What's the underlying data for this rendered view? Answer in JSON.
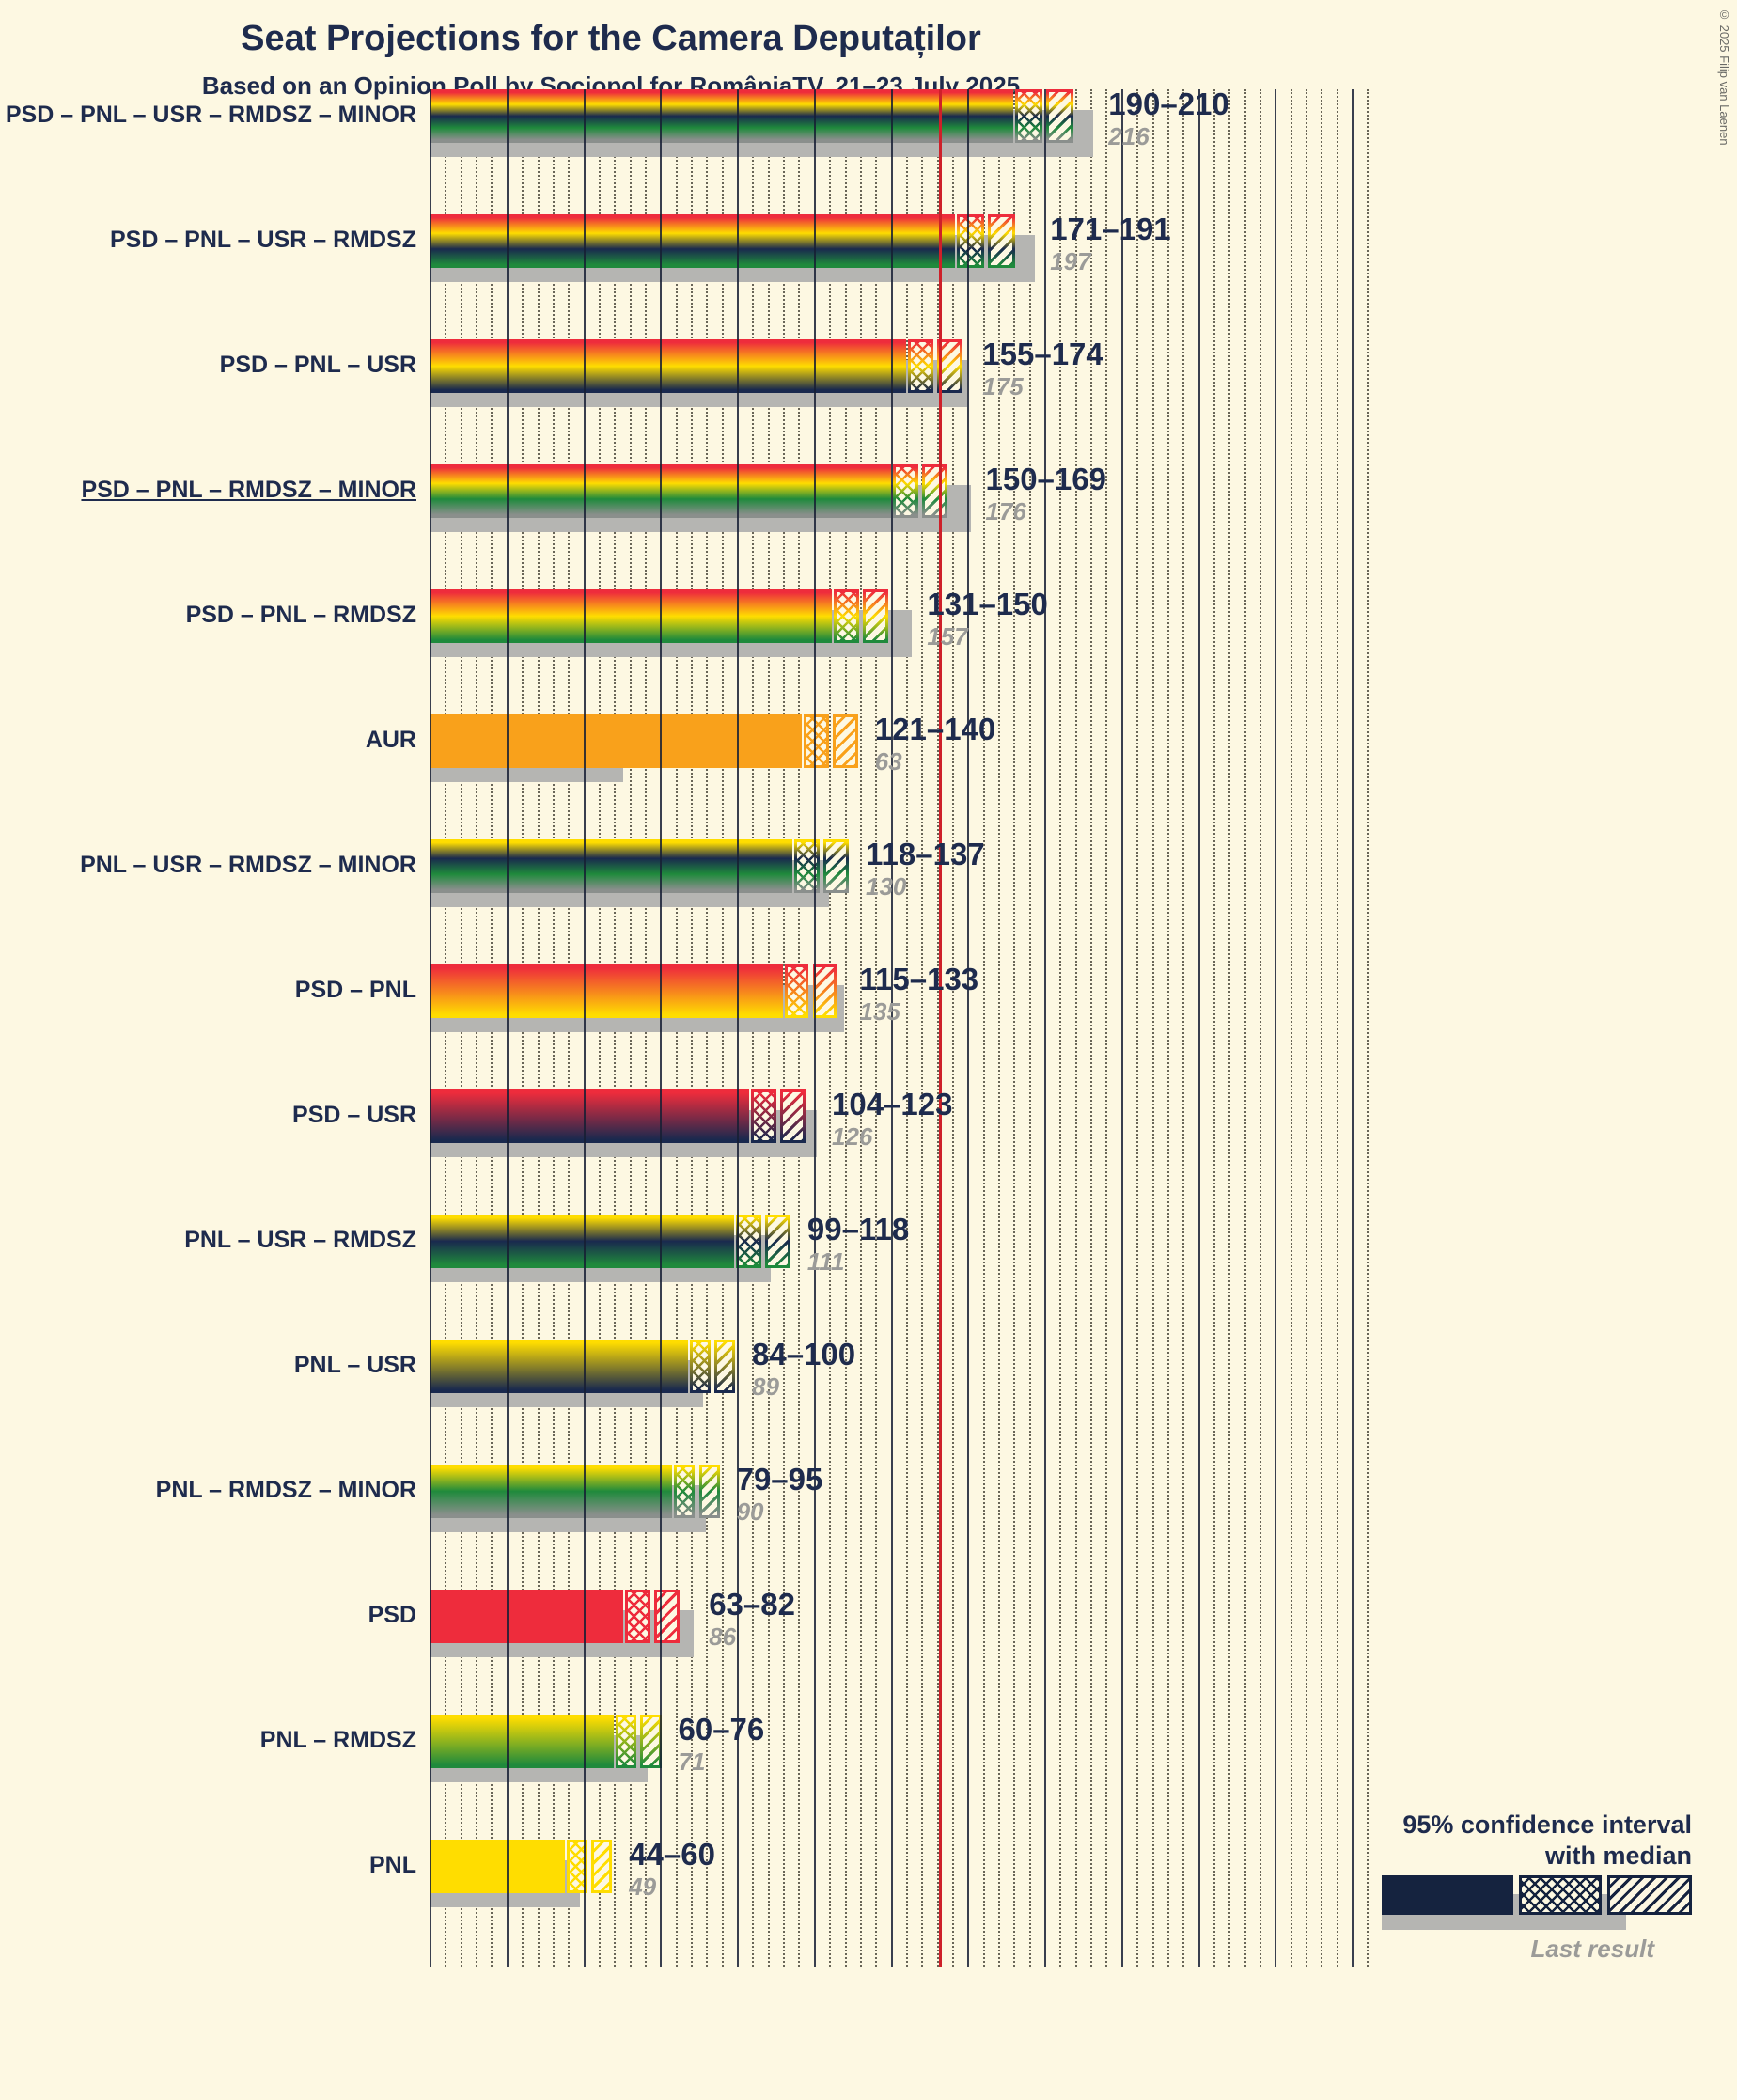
{
  "title": "Seat Projections for the Camera Deputaților",
  "subtitle": "Based on an Opinion Poll by Sociopol for RomâniaTV, 21–23 July 2025",
  "copyright": "© 2025 Filip van Laenen",
  "legend": {
    "ci_line1": "95% confidence interval",
    "ci_line2": "with median",
    "last_result": "Last result"
  },
  "colors": {
    "PSD": "#EE2C3C",
    "PNL": "#FFDD00",
    "USR": "#19294E",
    "RMDSZ": "#1F8A3C",
    "MINOR": "#8A8F8C",
    "AUR": "#F9A11B",
    "last_result_bar": "#B5B5B2",
    "majority_line": "#CE2029",
    "legend_sample": "#15233F",
    "text": "#1E2B4D",
    "muted_text": "#9B9B98",
    "background": "#FDF8E2"
  },
  "chart_data": {
    "type": "bar",
    "orientation": "horizontal",
    "title": "Seat Projections for the Camera Deputaților",
    "x_axis": {
      "min": 0,
      "max": 305,
      "solid_gridline_step": 25,
      "dotted_gridline_step": 5,
      "majority_line_seats": 166
    },
    "rows": [
      {
        "label": "PSD – PNL – USR – RMDSZ – MINOR",
        "parties": [
          "PSD",
          "PNL",
          "USR",
          "RMDSZ",
          "MINOR"
        ],
        "ci_low": 190,
        "ci_high": 210,
        "range_label": "190–210",
        "last_result": 216,
        "last_result_label": "216",
        "underline": false
      },
      {
        "label": "PSD – PNL – USR – RMDSZ",
        "parties": [
          "PSD",
          "PNL",
          "USR",
          "RMDSZ"
        ],
        "ci_low": 171,
        "ci_high": 191,
        "range_label": "171–191",
        "last_result": 197,
        "last_result_label": "197",
        "underline": false
      },
      {
        "label": "PSD – PNL – USR",
        "parties": [
          "PSD",
          "PNL",
          "USR"
        ],
        "ci_low": 155,
        "ci_high": 174,
        "range_label": "155–174",
        "last_result": 175,
        "last_result_label": "175",
        "underline": false
      },
      {
        "label": "PSD – PNL – RMDSZ – MINOR",
        "parties": [
          "PSD",
          "PNL",
          "RMDSZ",
          "MINOR"
        ],
        "ci_low": 150,
        "ci_high": 169,
        "range_label": "150–169",
        "last_result": 176,
        "last_result_label": "176",
        "underline": true
      },
      {
        "label": "PSD – PNL – RMDSZ",
        "parties": [
          "PSD",
          "PNL",
          "RMDSZ"
        ],
        "ci_low": 131,
        "ci_high": 150,
        "range_label": "131–150",
        "last_result": 157,
        "last_result_label": "157",
        "underline": false
      },
      {
        "label": "AUR",
        "parties": [
          "AUR"
        ],
        "ci_low": 121,
        "ci_high": 140,
        "range_label": "121–140",
        "last_result": 63,
        "last_result_label": "63",
        "underline": false
      },
      {
        "label": "PNL – USR – RMDSZ – MINOR",
        "parties": [
          "PNL",
          "USR",
          "RMDSZ",
          "MINOR"
        ],
        "ci_low": 118,
        "ci_high": 137,
        "range_label": "118–137",
        "last_result": 130,
        "last_result_label": "130",
        "underline": false
      },
      {
        "label": "PSD – PNL",
        "parties": [
          "PSD",
          "PNL"
        ],
        "ci_low": 115,
        "ci_high": 133,
        "range_label": "115–133",
        "last_result": 135,
        "last_result_label": "135",
        "underline": false
      },
      {
        "label": "PSD – USR",
        "parties": [
          "PSD",
          "USR"
        ],
        "ci_low": 104,
        "ci_high": 123,
        "range_label": "104–123",
        "last_result": 126,
        "last_result_label": "126",
        "underline": false
      },
      {
        "label": "PNL – USR – RMDSZ",
        "parties": [
          "PNL",
          "USR",
          "RMDSZ"
        ],
        "ci_low": 99,
        "ci_high": 118,
        "range_label": "99–118",
        "last_result": 111,
        "last_result_label": "111",
        "underline": false
      },
      {
        "label": "PNL – USR",
        "parties": [
          "PNL",
          "USR"
        ],
        "ci_low": 84,
        "ci_high": 100,
        "range_label": "84–100",
        "last_result": 89,
        "last_result_label": "89",
        "underline": false
      },
      {
        "label": "PNL – RMDSZ – MINOR",
        "parties": [
          "PNL",
          "RMDSZ",
          "MINOR"
        ],
        "ci_low": 79,
        "ci_high": 95,
        "range_label": "79–95",
        "last_result": 90,
        "last_result_label": "90",
        "underline": false
      },
      {
        "label": "PSD",
        "parties": [
          "PSD"
        ],
        "ci_low": 63,
        "ci_high": 82,
        "range_label": "63–82",
        "last_result": 86,
        "last_result_label": "86",
        "underline": false
      },
      {
        "label": "PNL – RMDSZ",
        "parties": [
          "PNL",
          "RMDSZ"
        ],
        "ci_low": 60,
        "ci_high": 76,
        "range_label": "60–76",
        "last_result": 71,
        "last_result_label": "71",
        "underline": false
      },
      {
        "label": "PNL",
        "parties": [
          "PNL"
        ],
        "ci_low": 44,
        "ci_high": 60,
        "range_label": "44–60",
        "last_result": 49,
        "last_result_label": "49",
        "underline": false
      }
    ]
  }
}
